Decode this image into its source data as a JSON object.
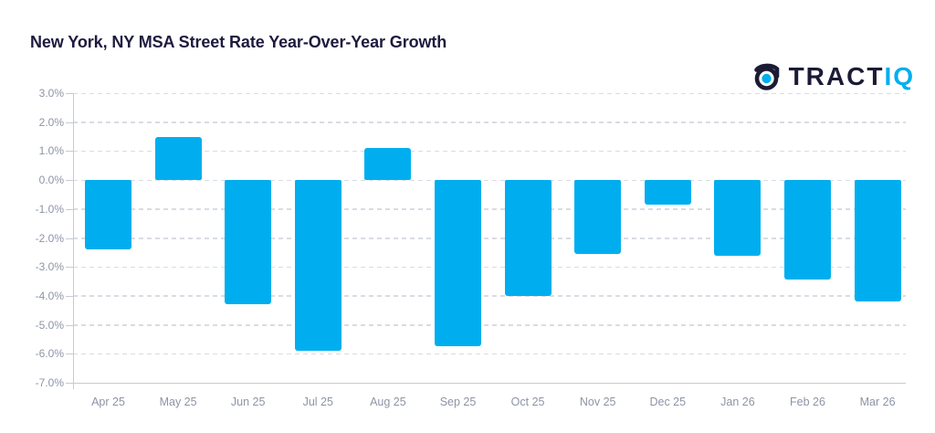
{
  "title": "New York, NY MSA Street Rate Year-Over-Year Growth",
  "logo": {
    "icon": "tractiq-logo-icon",
    "text_primary": "TRACT",
    "text_secondary": "IQ"
  },
  "chart_data": {
    "type": "bar",
    "title": "New York, NY MSA Street Rate Year-Over-Year Growth",
    "series_name": "Street Rate YoY Growth",
    "categories": [
      "Apr 25",
      "May 25",
      "Jun 25",
      "Jul 25",
      "Aug 25",
      "Sep 25",
      "Oct 25",
      "Nov 25",
      "Dec 25",
      "Jan 26",
      "Feb 26",
      "Mar 26"
    ],
    "values": [
      -2.4,
      1.5,
      -4.3,
      -5.9,
      1.1,
      -5.75,
      -4.0,
      -2.55,
      -0.85,
      -2.6,
      -3.45,
      -4.2
    ],
    "value_unit": "%",
    "xlabel": "",
    "ylabel": "",
    "ylim": [
      -7.0,
      3.0
    ],
    "ytick_step": 1.0,
    "ytick_labels": [
      "3.0%",
      "2.0%",
      "1.0%",
      "0.0%",
      "-1.0%",
      "-2.0%",
      "-3.0%",
      "-4.0%",
      "-5.0%",
      "-6.0%",
      "-7.0%"
    ],
    "grid": "horizontal-dashed",
    "legend": "none",
    "colors": {
      "bar": "#00AEEF",
      "title_text": "#1E1A3E",
      "axis_text": "#8C95A5",
      "gridline": "#D8DCE4",
      "axis_line": "#C5CAD4",
      "logo_navy": "#1B1B35",
      "logo_cyan": "#00AEEF",
      "background": "#FFFFFF"
    }
  }
}
